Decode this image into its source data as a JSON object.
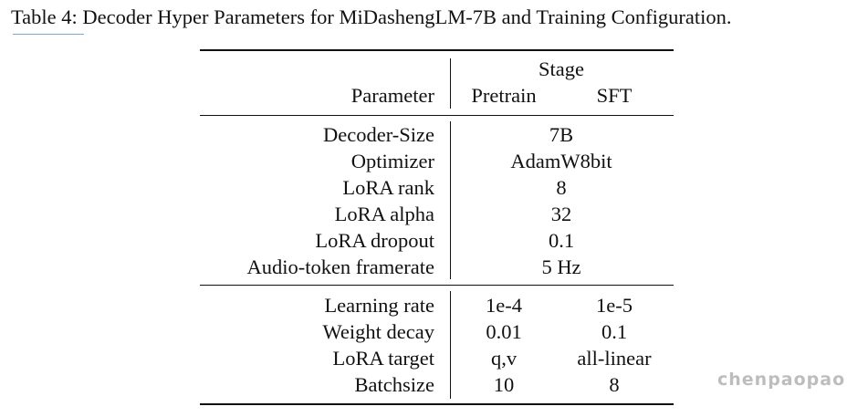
{
  "caption": "Table 4: Decoder Hyper Parameters for MiDashengLM-7B and Training Configuration.",
  "table": {
    "header": {
      "stage_label": "Stage",
      "parameter_label": "Parameter",
      "pretrain_label": "Pretrain",
      "sft_label": "SFT"
    },
    "shared_rows": [
      {
        "parameter": "Decoder-Size",
        "value": "7B"
      },
      {
        "parameter": "Optimizer",
        "value": "AdamW8bit"
      },
      {
        "parameter": "LoRA rank",
        "value": "8"
      },
      {
        "parameter": "LoRA alpha",
        "value": "32"
      },
      {
        "parameter": "LoRA dropout",
        "value": "0.1"
      },
      {
        "parameter": "Audio-token framerate",
        "value": "5 Hz"
      }
    ],
    "split_rows": [
      {
        "parameter": "Learning rate",
        "pretrain": "1e-4",
        "sft": "1e-5"
      },
      {
        "parameter": "Weight decay",
        "pretrain": "0.01",
        "sft": "0.1"
      },
      {
        "parameter": "LoRA target",
        "pretrain": "q,v",
        "sft": "all-linear"
      },
      {
        "parameter": "Batchsize",
        "pretrain": "10",
        "sft": "8"
      }
    ]
  },
  "watermark": "chenpaopao"
}
